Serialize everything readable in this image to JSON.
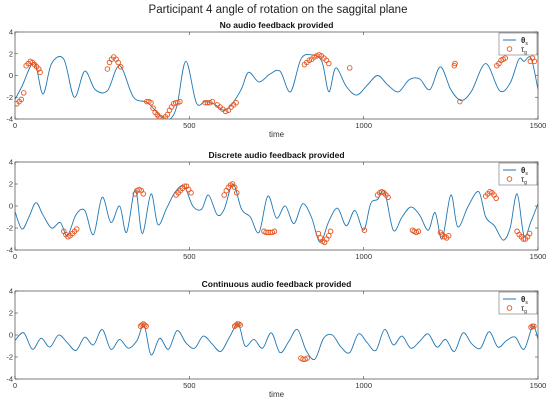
{
  "figure": {
    "title": "Participant 4 angle of rotation on the saggital plane"
  },
  "colors": {
    "signal": "#1f77b4",
    "markers": "#e8541d",
    "axis": "#444444"
  },
  "chart_data": [
    {
      "type": "line",
      "title": "No audio feedback provided",
      "xlabel": "time",
      "ylabel": "",
      "xlim": [
        0,
        1500
      ],
      "ylim": [
        -4,
        4
      ],
      "xticks": [
        0,
        500,
        1000,
        1500
      ],
      "yticks": [
        -4,
        -2,
        0,
        2,
        4
      ],
      "legend": {
        "position": "top-right",
        "entries": [
          {
            "symbol": "line",
            "main": "θ",
            "sub": "s"
          },
          {
            "symbol": "circle",
            "main": "τ",
            "sub": "g"
          }
        ]
      },
      "series": [
        {
          "role": "signal",
          "x": [
            0,
            20,
            55,
            80,
            105,
            140,
            170,
            200,
            230,
            265,
            300,
            340,
            380,
            420,
            445,
            465,
            490,
            520,
            545,
            570,
            600,
            625,
            650,
            670,
            700,
            730,
            760,
            790,
            820,
            850,
            880,
            900,
            920,
            950,
            980,
            1010,
            1040,
            1070,
            1100,
            1130,
            1160,
            1190,
            1220,
            1250,
            1280,
            1310,
            1350,
            1390,
            1420,
            1445,
            1460,
            1480,
            1500
          ],
          "y": [
            -2.2,
            -1.0,
            1.2,
            -1.7,
            1.1,
            1.5,
            -2.0,
            0.4,
            -1.3,
            -1.4,
            0.9,
            -2.0,
            -2.5,
            -3.8,
            -4.0,
            -2.7,
            1.3,
            -2.5,
            -2.4,
            -2.6,
            -3.2,
            -2.5,
            -1.2,
            0.3,
            -0.6,
            0.1,
            0.4,
            -1.5,
            1.5,
            1.9,
            1.3,
            -1.5,
            0.7,
            -1.0,
            -1.8,
            -0.9,
            0.0,
            -0.9,
            -1.5,
            -0.4,
            -0.3,
            -1.3,
            0.8,
            -1.3,
            -2.3,
            -1.4,
            1.1,
            -1.4,
            -0.7,
            1.5,
            1.3,
            1.6,
            -1.3
          ]
        },
        {
          "role": "markers",
          "x": [
            5,
            12,
            18,
            25,
            32,
            38,
            44,
            50,
            56,
            62,
            68,
            72,
            265,
            271,
            277,
            283,
            290,
            296,
            303,
            378,
            384,
            390,
            396,
            402,
            408,
            413,
            419,
            425,
            431,
            437,
            443,
            449,
            455,
            461,
            467,
            473,
            545,
            552,
            559,
            566,
            580,
            588,
            596,
            604,
            612,
            620,
            627,
            634,
            830,
            837,
            844,
            851,
            858,
            865,
            872,
            879,
            886,
            893,
            900,
            960,
            1260,
            1262,
            1276,
            1382,
            1388,
            1394,
            1400,
            1406,
            1478,
            1484,
            1490
          ],
          "y": [
            -2.6,
            -2.4,
            -2.2,
            -1.6,
            0.9,
            1.1,
            1.3,
            1.2,
            1.0,
            0.8,
            0.6,
            0.3,
            0.6,
            1.2,
            1.5,
            1.7,
            1.5,
            1.2,
            0.8,
            -2.4,
            -2.4,
            -2.5,
            -3.0,
            -3.4,
            -3.6,
            -3.8,
            -3.9,
            -4.0,
            -3.8,
            -3.6,
            -3.2,
            -2.9,
            -2.6,
            -2.5,
            -2.5,
            -2.4,
            -2.5,
            -2.5,
            -2.5,
            -2.4,
            -2.7,
            -2.9,
            -3.1,
            -3.3,
            -3.2,
            -2.9,
            -2.7,
            -2.5,
            1.0,
            1.2,
            1.4,
            1.5,
            1.7,
            1.8,
            1.9,
            1.8,
            1.6,
            1.4,
            1.1,
            0.7,
            0.9,
            1.1,
            -2.4,
            0.9,
            1.1,
            1.4,
            1.5,
            1.6,
            1.3,
            1.6,
            1.3
          ]
        }
      ]
    },
    {
      "type": "line",
      "title": "Discrete audio feedback provided",
      "xlabel": "",
      "ylabel": "",
      "xlim": [
        0,
        1500
      ],
      "ylim": [
        -4,
        4
      ],
      "xticks": [
        0,
        500,
        1000,
        1500
      ],
      "yticks": [
        -4,
        -2,
        0,
        2,
        4
      ],
      "legend": {
        "position": "top-right",
        "entries": [
          {
            "symbol": "line",
            "main": "θ",
            "sub": "s"
          },
          {
            "symbol": "circle",
            "main": "τ",
            "sub": "g"
          }
        ]
      },
      "series": [
        {
          "role": "signal",
          "x": [
            0,
            20,
            40,
            60,
            80,
            105,
            130,
            150,
            175,
            200,
            225,
            250,
            275,
            300,
            320,
            345,
            365,
            390,
            410,
            435,
            460,
            485,
            510,
            535,
            555,
            580,
            600,
            625,
            650,
            675,
            700,
            725,
            750,
            775,
            800,
            825,
            850,
            875,
            900,
            925,
            950,
            975,
            1000,
            1020,
            1040,
            1060,
            1085,
            1110,
            1135,
            1160,
            1185,
            1205,
            1225,
            1250,
            1270,
            1300,
            1330,
            1350,
            1375,
            1400,
            1420,
            1440,
            1460,
            1480,
            1500
          ],
          "y": [
            -0.5,
            -2.1,
            -1.0,
            0.3,
            -0.8,
            -2.0,
            -1.5,
            -2.7,
            -0.8,
            -0.4,
            -2.6,
            0.8,
            -1.5,
            0.0,
            -2.4,
            1.5,
            -2.5,
            1.1,
            -1.7,
            -0.2,
            1.3,
            1.8,
            0.0,
            -0.3,
            1.0,
            -0.8,
            -0.3,
            2.0,
            -0.3,
            -1.0,
            -2.4,
            0.9,
            -1.1,
            0.0,
            -1.6,
            0.2,
            -1.0,
            -3.3,
            -1.4,
            -0.2,
            -1.8,
            -0.4,
            -2.2,
            0.2,
            0.6,
            1.3,
            -2.2,
            -1.0,
            -0.1,
            -0.8,
            -2.2,
            -0.6,
            -3.0,
            1.0,
            -1.9,
            0.0,
            1.3,
            -1.0,
            -1.8,
            -3.1,
            -2.0,
            1.1,
            -2.7,
            -1.4,
            0.2
          ]
        },
        {
          "role": "markers",
          "x": [
            140,
            146,
            152,
            158,
            165,
            171,
            177,
            345,
            350,
            356,
            362,
            368,
            462,
            468,
            474,
            480,
            486,
            492,
            498,
            505,
            600,
            606,
            612,
            618,
            624,
            630,
            636,
            714,
            720,
            726,
            732,
            738,
            744,
            870,
            876,
            882,
            888,
            894,
            900,
            905,
            1002,
            1040,
            1046,
            1052,
            1058,
            1064,
            1070,
            1140,
            1145,
            1151,
            1157,
            1220,
            1226,
            1232,
            1238,
            1244,
            1350,
            1356,
            1362,
            1368,
            1374,
            1380,
            1440,
            1446,
            1452,
            1458,
            1464,
            1470,
            1476
          ],
          "y": [
            -2.3,
            -2.6,
            -2.8,
            -2.7,
            -2.5,
            -2.3,
            -2.1,
            1.1,
            1.4,
            1.5,
            1.4,
            1.1,
            1.0,
            1.2,
            1.4,
            1.6,
            1.8,
            1.8,
            1.5,
            1.2,
            1.0,
            1.4,
            1.7,
            1.9,
            2.0,
            1.7,
            1.2,
            -2.3,
            -2.4,
            -2.4,
            -2.4,
            -2.4,
            -2.3,
            -2.5,
            -2.9,
            -3.2,
            -3.3,
            -3.0,
            -2.7,
            -2.3,
            -2.2,
            1.0,
            1.2,
            1.3,
            1.2,
            1.0,
            0.8,
            -2.2,
            -2.3,
            -2.4,
            -2.3,
            -2.4,
            -2.6,
            -2.8,
            -2.9,
            -2.7,
            0.9,
            1.1,
            1.3,
            1.2,
            1.0,
            0.7,
            -2.3,
            -2.6,
            -2.8,
            -3.0,
            -3.0,
            -2.8,
            -2.5
          ]
        }
      ]
    },
    {
      "type": "line",
      "title": "Continuous audio feedback provided",
      "xlabel": "time",
      "ylabel": "",
      "xlim": [
        0,
        1500
      ],
      "ylim": [
        -4,
        4
      ],
      "xticks": [
        0,
        500,
        1000,
        1500
      ],
      "yticks": [
        -4,
        -2,
        0,
        2,
        4
      ],
      "legend": {
        "position": "top-right",
        "entries": [
          {
            "symbol": "line",
            "main": "θ",
            "sub": "s"
          },
          {
            "symbol": "circle",
            "main": "τ",
            "sub": "g"
          }
        ]
      },
      "series": [
        {
          "role": "signal",
          "x": [
            0,
            25,
            50,
            75,
            100,
            125,
            150,
            175,
            200,
            225,
            250,
            275,
            300,
            325,
            350,
            370,
            390,
            415,
            440,
            465,
            490,
            515,
            540,
            565,
            590,
            615,
            640,
            660,
            685,
            710,
            735,
            760,
            785,
            810,
            835,
            860,
            885,
            910,
            935,
            960,
            985,
            1010,
            1035,
            1060,
            1085,
            1110,
            1135,
            1160,
            1185,
            1210,
            1235,
            1260,
            1285,
            1310,
            1335,
            1360,
            1385,
            1410,
            1435,
            1460,
            1485,
            1500
          ],
          "y": [
            -0.5,
            0.2,
            -1.3,
            -0.3,
            -1.1,
            0.0,
            -0.7,
            -1.4,
            -0.2,
            -0.9,
            0.5,
            -1.3,
            -0.4,
            -1.2,
            -0.5,
            0.9,
            -1.8,
            -0.3,
            -1.3,
            0.4,
            -0.7,
            -1.2,
            -0.1,
            -0.8,
            -1.5,
            -0.2,
            1.0,
            -1.0,
            -0.4,
            -1.2,
            0.2,
            -1.6,
            -0.6,
            0.5,
            -1.4,
            -2.2,
            -0.3,
            0.0,
            -1.1,
            -1.6,
            0.1,
            -0.7,
            -1.4,
            0.5,
            -0.9,
            -0.1,
            -1.2,
            -0.6,
            0.1,
            -1.1,
            -0.4,
            -1.5,
            0.2,
            -0.8,
            -1.2,
            0.3,
            -1.1,
            -0.5,
            -0.2,
            -1.3,
            0.8,
            -0.4
          ]
        },
        {
          "role": "markers",
          "x": [
            360,
            364,
            368,
            372,
            376,
            630,
            634,
            638,
            642,
            646,
            820,
            826,
            832,
            838,
            1480,
            1484,
            1488
          ],
          "y": [
            0.8,
            0.9,
            1.0,
            0.9,
            0.8,
            0.8,
            0.9,
            1.0,
            1.0,
            0.9,
            -2.1,
            -2.2,
            -2.2,
            -2.1,
            0.7,
            0.8,
            0.8
          ]
        }
      ]
    }
  ]
}
